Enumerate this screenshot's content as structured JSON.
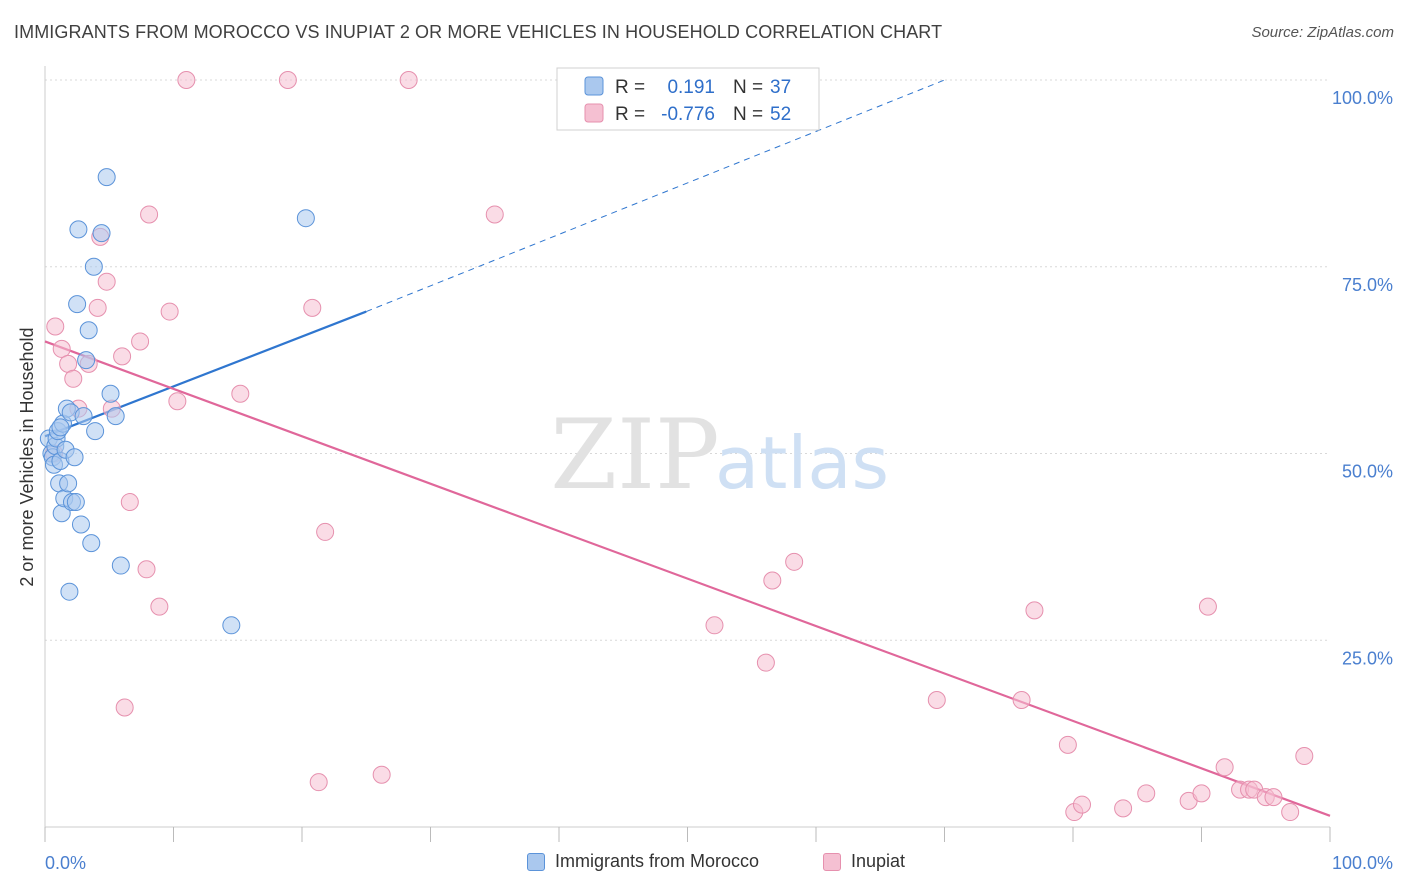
{
  "title": "IMMIGRANTS FROM MOROCCO VS INUPIAT 2 OR MORE VEHICLES IN HOUSEHOLD CORRELATION CHART",
  "source": "Source: ZipAtlas.com",
  "watermark": {
    "zip": "ZIP",
    "atlas": "atlas"
  },
  "legend_top": {
    "rows": [
      {
        "r_label": "R =",
        "r_value": "0.191",
        "n_label": "N =",
        "n_value": "37"
      },
      {
        "r_label": "R =",
        "r_value": "-0.776",
        "n_label": "N =",
        "n_value": "52"
      }
    ]
  },
  "colors": {
    "blue_fill": "#aac8ee",
    "blue_stroke": "#5b93d9",
    "blue_line": "#2f76cf",
    "pink_fill": "#f5c0d2",
    "pink_stroke": "#e690ae",
    "pink_line": "#e0679a",
    "axis_label": "#4a7fcf",
    "grid": "#d8d8d8"
  },
  "chart_data": {
    "type": "scatter",
    "title": "IMMIGRANTS FROM MOROCCO VS INUPIAT 2 OR MORE VEHICLES IN HOUSEHOLD CORRELATION CHART",
    "xlabel": "",
    "ylabel": "2 or more Vehicles in Household",
    "xlim": [
      0,
      100
    ],
    "ylim": [
      0,
      100
    ],
    "x_tick_labels": [
      "0.0%",
      "100.0%"
    ],
    "y_tick_labels": [
      "25.0%",
      "50.0%",
      "75.0%",
      "100.0%"
    ],
    "y_ticks": [
      25,
      50,
      75,
      100
    ],
    "legend": [
      "Immigrants from Morocco",
      "Inupiat"
    ],
    "series": [
      {
        "name": "Immigrants from Morocco",
        "r": 0.191,
        "n": 37,
        "points": [
          [
            0.3,
            52
          ],
          [
            0.5,
            50
          ],
          [
            0.6,
            49.5
          ],
          [
            0.7,
            48.5
          ],
          [
            0.8,
            51
          ],
          [
            0.9,
            52
          ],
          [
            1.0,
            53
          ],
          [
            1.1,
            46
          ],
          [
            1.2,
            49
          ],
          [
            1.3,
            42
          ],
          [
            1.4,
            54
          ],
          [
            1.5,
            44
          ],
          [
            1.6,
            50.5
          ],
          [
            1.7,
            56
          ],
          [
            1.8,
            46
          ],
          [
            1.9,
            31.5
          ],
          [
            2.0,
            55.5
          ],
          [
            2.1,
            43.5
          ],
          [
            2.3,
            49.5
          ],
          [
            2.4,
            43.5
          ],
          [
            2.5,
            70
          ],
          [
            2.6,
            80
          ],
          [
            2.8,
            40.5
          ],
          [
            3.0,
            55
          ],
          [
            3.2,
            62.5
          ],
          [
            3.4,
            66.5
          ],
          [
            3.6,
            38
          ],
          [
            3.8,
            75
          ],
          [
            3.9,
            53
          ],
          [
            4.4,
            79.5
          ],
          [
            4.8,
            87
          ],
          [
            5.1,
            58
          ],
          [
            5.5,
            55
          ],
          [
            5.9,
            35
          ],
          [
            14.5,
            27
          ],
          [
            20.3,
            81.5
          ],
          [
            1.2,
            53.5
          ]
        ],
        "trend_solid": [
          [
            0,
            52.3
          ],
          [
            25,
            69.0
          ]
        ],
        "trend_dashed": [
          [
            25,
            69.0
          ],
          [
            70,
            100
          ]
        ]
      },
      {
        "name": "Inupiat",
        "r": -0.776,
        "n": 52,
        "points": [
          [
            0.7,
            50
          ],
          [
            0.8,
            67
          ],
          [
            1.3,
            64
          ],
          [
            1.8,
            62
          ],
          [
            2.2,
            60
          ],
          [
            2.6,
            56
          ],
          [
            3.4,
            62
          ],
          [
            4.1,
            69.5
          ],
          [
            4.3,
            79
          ],
          [
            4.8,
            73
          ],
          [
            5.2,
            56
          ],
          [
            6.0,
            63
          ],
          [
            6.2,
            16
          ],
          [
            6.6,
            43.5
          ],
          [
            7.4,
            65
          ],
          [
            7.9,
            34.5
          ],
          [
            8.1,
            82
          ],
          [
            8.9,
            29.5
          ],
          [
            9.7,
            69
          ],
          [
            10.3,
            57
          ],
          [
            11.0,
            100
          ],
          [
            15.2,
            58
          ],
          [
            18.9,
            100
          ],
          [
            20.8,
            69.5
          ],
          [
            21.3,
            6
          ],
          [
            21.8,
            39.5
          ],
          [
            26.2,
            7
          ],
          [
            28.3,
            100
          ],
          [
            35.0,
            82
          ],
          [
            52.1,
            27
          ],
          [
            56.1,
            22
          ],
          [
            56.6,
            33
          ],
          [
            58.3,
            35.5
          ],
          [
            69.4,
            17
          ],
          [
            76.0,
            17
          ],
          [
            77.0,
            29
          ],
          [
            79.6,
            11
          ],
          [
            80.1,
            2
          ],
          [
            80.7,
            3
          ],
          [
            83.9,
            2.5
          ],
          [
            85.7,
            4.5
          ],
          [
            89.0,
            3.5
          ],
          [
            90.0,
            4.5
          ],
          [
            90.5,
            29.5
          ],
          [
            91.8,
            8
          ],
          [
            93.0,
            5
          ],
          [
            93.7,
            5
          ],
          [
            94.1,
            5
          ],
          [
            95.0,
            4
          ],
          [
            95.6,
            4
          ],
          [
            96.9,
            2
          ],
          [
            98.0,
            9.5
          ]
        ],
        "trend_solid": [
          [
            0,
            65.0
          ],
          [
            100,
            1.5
          ]
        ]
      }
    ]
  }
}
